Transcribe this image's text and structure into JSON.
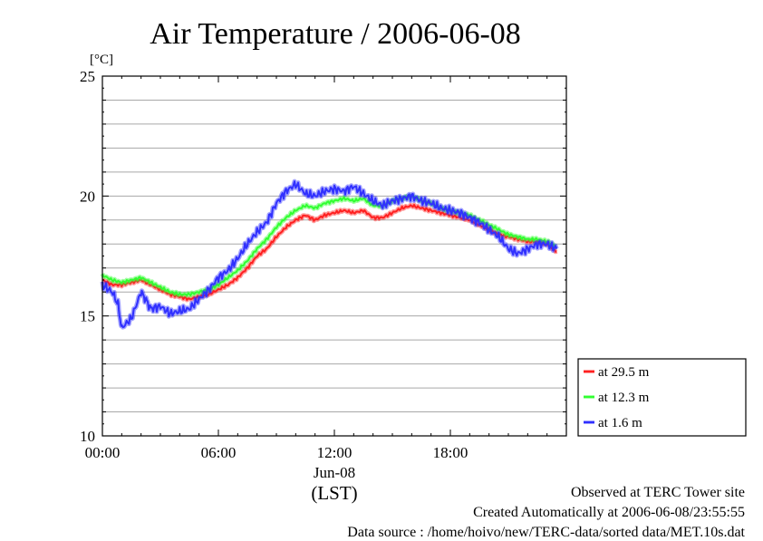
{
  "chart_data": {
    "type": "line",
    "title": "Air Temperature / 2006-06-08",
    "ylabel": "[°C]",
    "xlabel": "(LST)",
    "date_label": "Jun-08",
    "ylim": [
      10,
      25
    ],
    "y_ticks": [
      "10",
      "15",
      "20",
      "25"
    ],
    "xlim_hours": [
      0,
      24
    ],
    "x_ticks": [
      "00:00",
      "06:00",
      "12:00",
      "18:00"
    ],
    "grid": true,
    "legend_position": "right",
    "series": [
      {
        "name": "at 29.5 m",
        "color": "#ff2020",
        "points": [
          [
            0,
            16.5
          ],
          [
            0.5,
            16.3
          ],
          [
            1,
            16.3
          ],
          [
            1.5,
            16.4
          ],
          [
            2,
            16.5
          ],
          [
            2.5,
            16.3
          ],
          [
            3,
            16.1
          ],
          [
            3.5,
            15.9
          ],
          [
            4,
            15.8
          ],
          [
            4.5,
            15.7
          ],
          [
            5,
            15.8
          ],
          [
            5.5,
            15.9
          ],
          [
            6,
            16.1
          ],
          [
            6.5,
            16.3
          ],
          [
            7,
            16.6
          ],
          [
            7.5,
            17.0
          ],
          [
            8,
            17.5
          ],
          [
            8.5,
            17.8
          ],
          [
            9,
            18.3
          ],
          [
            9.5,
            18.7
          ],
          [
            10,
            19.0
          ],
          [
            10.5,
            19.2
          ],
          [
            11,
            19.0
          ],
          [
            11.5,
            19.2
          ],
          [
            12,
            19.3
          ],
          [
            12.5,
            19.4
          ],
          [
            13,
            19.3
          ],
          [
            13.5,
            19.4
          ],
          [
            14,
            19.1
          ],
          [
            14.5,
            19.1
          ],
          [
            15,
            19.3
          ],
          [
            15.5,
            19.5
          ],
          [
            16,
            19.6
          ],
          [
            16.5,
            19.5
          ],
          [
            17,
            19.4
          ],
          [
            17.5,
            19.3
          ],
          [
            18,
            19.2
          ],
          [
            18.5,
            19.1
          ],
          [
            19,
            19.0
          ],
          [
            19.5,
            18.8
          ],
          [
            20,
            18.6
          ],
          [
            20.5,
            18.4
          ],
          [
            21,
            18.3
          ],
          [
            21.5,
            18.2
          ],
          [
            22,
            18.1
          ],
          [
            22.5,
            18.1
          ],
          [
            23,
            18.0
          ],
          [
            23.5,
            17.7
          ]
        ]
      },
      {
        "name": "at 12.3 m",
        "color": "#30ff30",
        "points": [
          [
            0,
            16.7
          ],
          [
            0.5,
            16.5
          ],
          [
            1,
            16.4
          ],
          [
            1.5,
            16.5
          ],
          [
            2,
            16.6
          ],
          [
            2.5,
            16.4
          ],
          [
            3,
            16.2
          ],
          [
            3.5,
            16.0
          ],
          [
            4,
            15.9
          ],
          [
            4.5,
            15.9
          ],
          [
            5,
            16.0
          ],
          [
            5.5,
            16.1
          ],
          [
            6,
            16.3
          ],
          [
            6.5,
            16.6
          ],
          [
            7,
            16.9
          ],
          [
            7.5,
            17.3
          ],
          [
            8,
            17.8
          ],
          [
            8.5,
            18.2
          ],
          [
            9,
            18.7
          ],
          [
            9.5,
            19.1
          ],
          [
            10,
            19.4
          ],
          [
            10.5,
            19.6
          ],
          [
            11,
            19.5
          ],
          [
            11.5,
            19.7
          ],
          [
            12,
            19.8
          ],
          [
            12.5,
            19.9
          ],
          [
            13,
            19.8
          ],
          [
            13.5,
            19.9
          ],
          [
            14,
            19.6
          ],
          [
            14.5,
            19.6
          ],
          [
            15,
            19.8
          ],
          [
            15.5,
            19.9
          ],
          [
            16,
            20.0
          ],
          [
            16.5,
            19.8
          ],
          [
            17,
            19.7
          ],
          [
            17.5,
            19.5
          ],
          [
            18,
            19.4
          ],
          [
            18.5,
            19.3
          ],
          [
            19,
            19.2
          ],
          [
            19.5,
            19.0
          ],
          [
            20,
            18.8
          ],
          [
            20.5,
            18.6
          ],
          [
            21,
            18.4
          ],
          [
            21.5,
            18.3
          ],
          [
            22,
            18.2
          ],
          [
            22.5,
            18.2
          ],
          [
            23,
            18.1
          ],
          [
            23.5,
            17.9
          ]
        ]
      },
      {
        "name": "at 1.6 m",
        "color": "#3030ff",
        "points": [
          [
            0,
            16.3
          ],
          [
            0.5,
            16.0
          ],
          [
            0.8,
            15.5
          ],
          [
            1,
            14.5
          ],
          [
            1.5,
            14.9
          ],
          [
            2,
            16.0
          ],
          [
            2.3,
            15.6
          ],
          [
            2.5,
            15.3
          ],
          [
            3,
            15.4
          ],
          [
            3.5,
            15.1
          ],
          [
            4,
            15.2
          ],
          [
            4.5,
            15.3
          ],
          [
            5,
            15.7
          ],
          [
            5.5,
            16.1
          ],
          [
            6,
            16.6
          ],
          [
            6.5,
            16.9
          ],
          [
            7,
            17.4
          ],
          [
            7.5,
            18.0
          ],
          [
            8,
            18.5
          ],
          [
            8.5,
            18.9
          ],
          [
            9,
            19.7
          ],
          [
            9.5,
            20.2
          ],
          [
            10,
            20.5
          ],
          [
            10.5,
            20.1
          ],
          [
            11,
            20.0
          ],
          [
            11.5,
            20.2
          ],
          [
            12,
            20.3
          ],
          [
            12.5,
            20.2
          ],
          [
            13,
            20.4
          ],
          [
            13.5,
            20.1
          ],
          [
            14,
            19.8
          ],
          [
            14.5,
            19.6
          ],
          [
            15,
            19.8
          ],
          [
            15.5,
            19.9
          ],
          [
            16,
            20.0
          ],
          [
            16.5,
            19.8
          ],
          [
            17,
            19.7
          ],
          [
            17.5,
            19.5
          ],
          [
            18,
            19.4
          ],
          [
            18.5,
            19.3
          ],
          [
            19,
            19.1
          ],
          [
            19.5,
            18.9
          ],
          [
            20,
            18.6
          ],
          [
            20.5,
            18.3
          ],
          [
            21,
            17.8
          ],
          [
            21.5,
            17.6
          ],
          [
            22,
            17.8
          ],
          [
            22.5,
            18.0
          ],
          [
            23,
            18.0
          ],
          [
            23.5,
            17.8
          ]
        ]
      }
    ]
  },
  "footer": {
    "site": "Observed at TERC Tower site",
    "created": "Created Automatically at 2006-06-08/23:55:55",
    "source": "Data source : /home/hoivo/new/TERC-data/sorted  data/MET.10s.dat"
  }
}
